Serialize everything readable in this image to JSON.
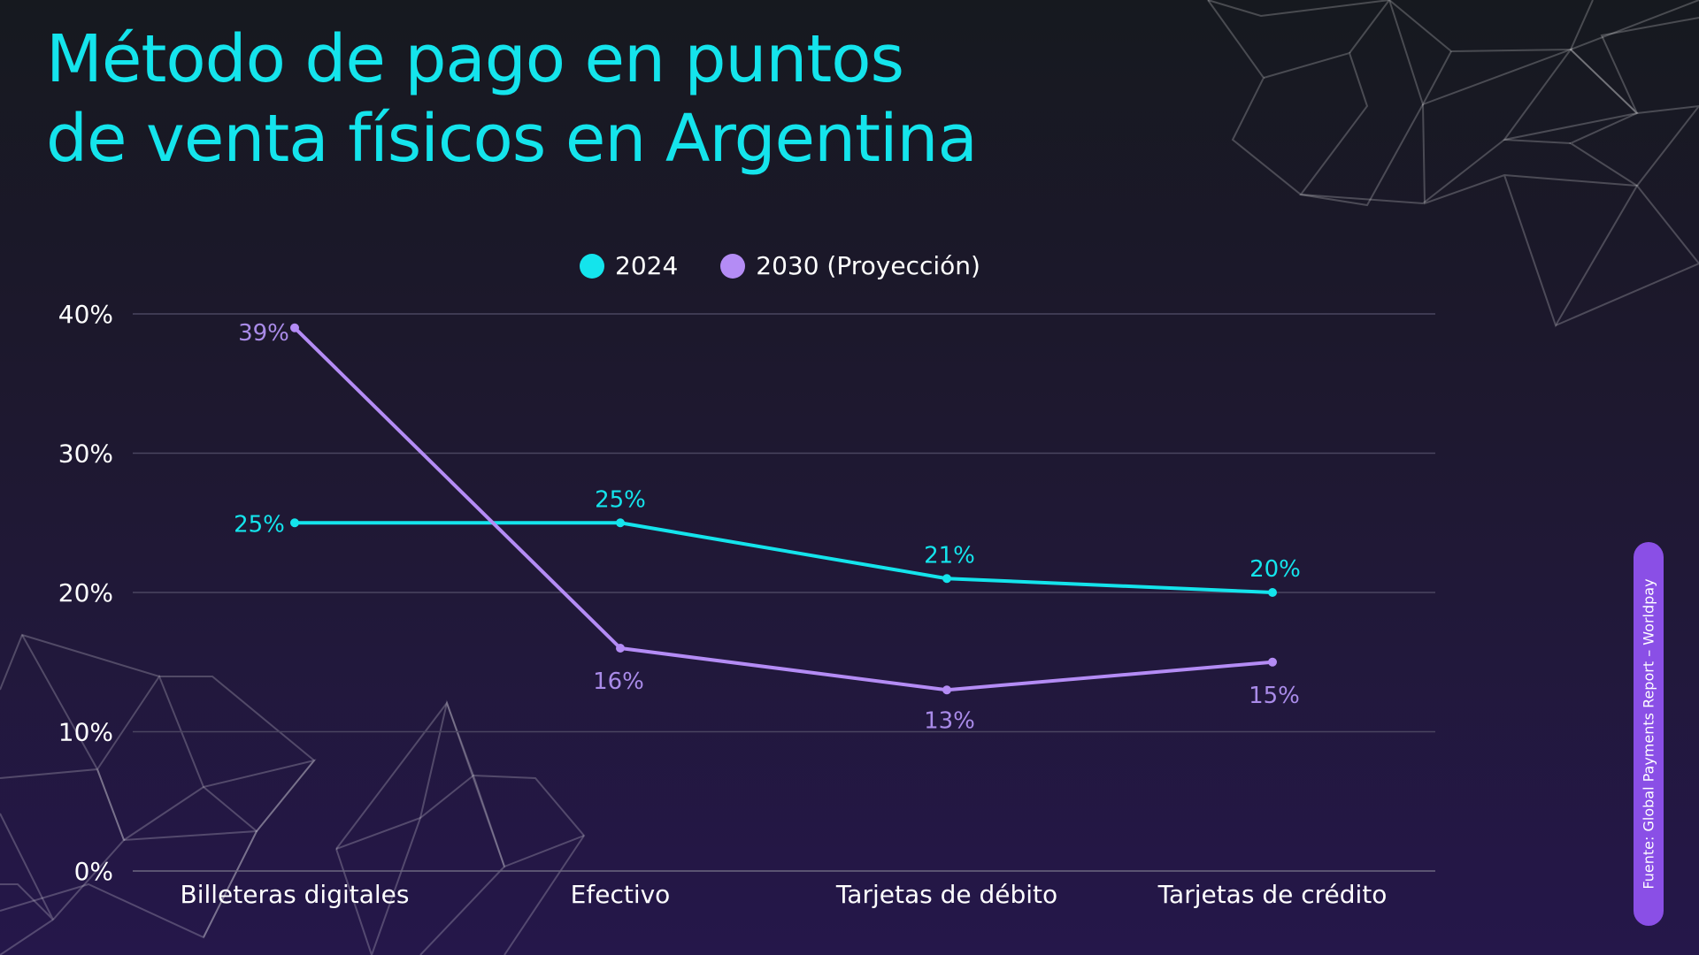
{
  "title_lines": [
    "Método de pago en puntos",
    "de venta físicos en Argentina"
  ],
  "source": "Fuente: Global Payments Report – Worldpay",
  "colors": {
    "series_2024": "#14e4ec",
    "series_2030": "#b48cf5",
    "label_2030": "#a98be8",
    "grid": "#4a4560",
    "axis_text": "#ffffff",
    "source_pill": "#8a4fe6"
  },
  "chart_data": {
    "type": "line",
    "categories": [
      "Billeteras digitales",
      "Efectivo",
      "Tarjetas de débito",
      "Tarjetas de crédito"
    ],
    "series": [
      {
        "name": "2024",
        "values": [
          25,
          25,
          21,
          20
        ],
        "labels": [
          "25%",
          "25%",
          "21%",
          "20%"
        ]
      },
      {
        "name": "2030 (Proyección)",
        "values": [
          39,
          16,
          13,
          15
        ],
        "labels": [
          "39%",
          "16%",
          "13%",
          "15%"
        ]
      }
    ],
    "ylim": [
      0,
      40
    ],
    "yticks": [
      0,
      10,
      20,
      30,
      40
    ],
    "ytick_labels": [
      "0%",
      "10%",
      "20%",
      "30%",
      "40%"
    ],
    "grid": true,
    "legend_position": "top-center"
  }
}
